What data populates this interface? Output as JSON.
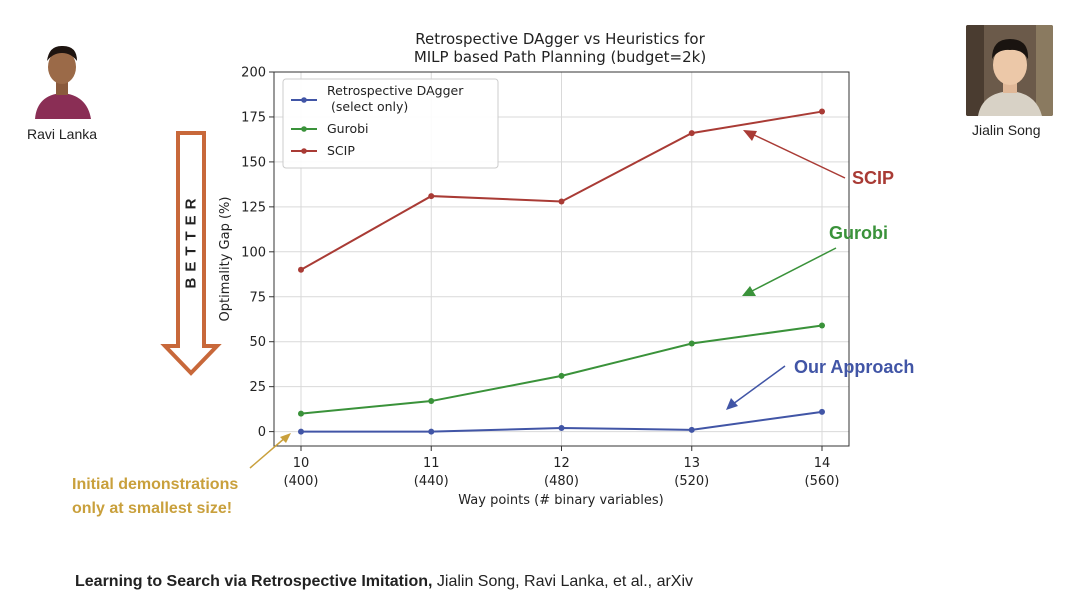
{
  "people": {
    "left": {
      "name": "Ravi Lanka"
    },
    "right": {
      "name": "Jialin Song"
    }
  },
  "better_label": "BETTER",
  "callouts": {
    "scip": {
      "label": "SCIP",
      "color": "#a93b35"
    },
    "gurobi": {
      "label": "Gurobi",
      "color": "#3a923a"
    },
    "ours": {
      "label": "Our Approach",
      "color": "#4155a6"
    }
  },
  "note": {
    "line1": "Initial demonstrations",
    "line2": "only at smallest size!",
    "color": "#c9a03c"
  },
  "citation": {
    "title": "Learning to Search via Retrospective Imitation,",
    "authors": "Jialin Song, Ravi Lanka, et al., arXiv"
  },
  "chart_data": {
    "type": "line",
    "title_line1": "Retrospective DAgger vs Heuristics for",
    "title_line2": "MILP based Path Planning (budget=2k)",
    "xlabel": "Way points (# binary variables)",
    "ylabel": "Optimality Gap (%)",
    "x": [
      10,
      11,
      12,
      13,
      14
    ],
    "categories_sub": [
      "(400)",
      "(440)",
      "(480)",
      "(520)",
      "(560)"
    ],
    "ylim": [
      -8,
      200
    ],
    "yticks": [
      0,
      25,
      50,
      75,
      100,
      125,
      150,
      175,
      200
    ],
    "grid": true,
    "legend_position": "top-left",
    "series": [
      {
        "name": "Retrospective DAgger",
        "name_line2": "(select only)",
        "color": "#4155a6",
        "values": [
          0,
          0,
          2,
          1,
          11
        ]
      },
      {
        "name": "Gurobi",
        "color": "#3a923a",
        "values": [
          10,
          17,
          31,
          49,
          59
        ]
      },
      {
        "name": "SCIP",
        "color": "#a93b35",
        "values": [
          90,
          131,
          128,
          166,
          178
        ]
      }
    ]
  }
}
